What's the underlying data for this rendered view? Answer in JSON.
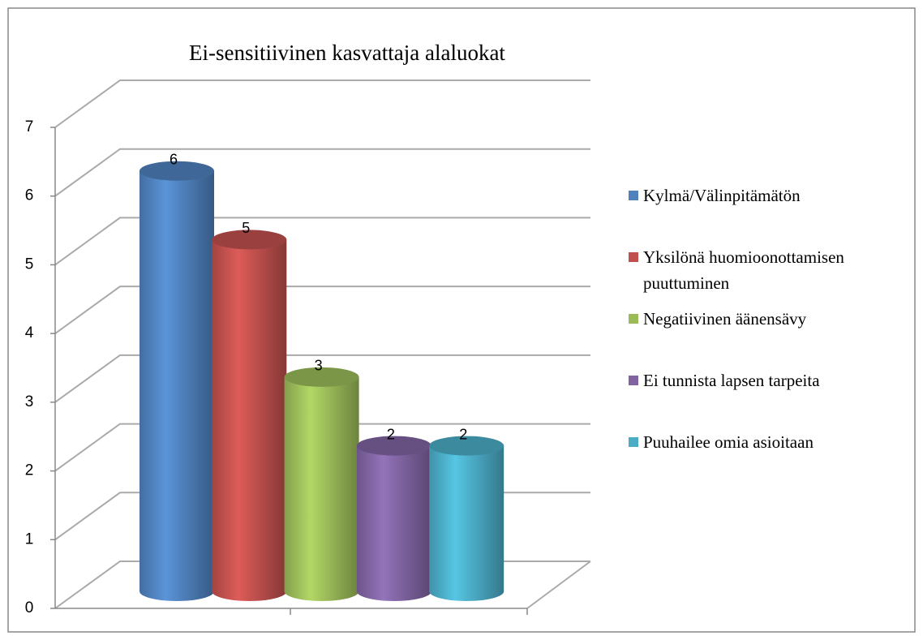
{
  "chart_data": {
    "type": "bar",
    "title": "Ei-sensitiivinen kasvattaja alaluokat",
    "categories": [
      null
    ],
    "series": [
      {
        "name": "Kylmä/Välinpitämätön",
        "color": "#4f81bd",
        "values": [
          6
        ]
      },
      {
        "name": "Yksilönä huomioonottamisen puuttuminen",
        "color": "#c0504d",
        "values": [
          5
        ]
      },
      {
        "name": "Negatiivinen äänensävy",
        "color": "#9bbb59",
        "values": [
          3
        ]
      },
      {
        "name": "Ei tunnista lapsen tarpeita",
        "color": "#8064a2",
        "values": [
          2
        ]
      },
      {
        "name": "Puuhailee omia asioitaan",
        "color": "#4bacc6",
        "values": [
          2
        ]
      }
    ],
    "ylim": [
      0,
      7
    ],
    "yticks": [
      0,
      1,
      2,
      3,
      4,
      5,
      6,
      7
    ],
    "grid": true,
    "legend": "right"
  }
}
